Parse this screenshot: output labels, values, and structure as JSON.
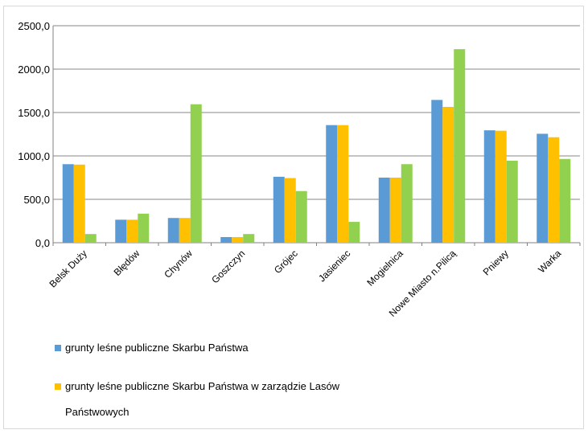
{
  "chart_data": {
    "type": "bar",
    "categories": [
      "Belsk Duży",
      "Błędów",
      "Chynów",
      "Goszczyn",
      "Grójec",
      "Jasieniec",
      "Mogielnica",
      "Nowe Miasto n.Pilicą",
      "Pniewy",
      "Warka"
    ],
    "series": [
      {
        "name": "grunty leśne publiczne Skarbu Państwa",
        "color": "#5b9bd5",
        "values": [
          905,
          265,
          285,
          65,
          760,
          1355,
          750,
          1645,
          1295,
          1255
        ]
      },
      {
        "name": "grunty leśne publiczne Skarbu Państwa w zarządzie Lasów Państwowych",
        "color": "#ffc000",
        "values": [
          900,
          265,
          285,
          65,
          745,
          1355,
          750,
          1565,
          1290,
          1215
        ]
      },
      {
        "name": "",
        "color": "#92d050",
        "values": [
          100,
          335,
          1595,
          100,
          595,
          240,
          905,
          2230,
          945,
          965
        ]
      }
    ],
    "yticks": [
      "0,0",
      "500,0",
      "1000,0",
      "1500,0",
      "2000,0",
      "2500,0"
    ],
    "ylim": [
      0,
      2500
    ],
    "grid": true,
    "legend_position": "bottom"
  }
}
